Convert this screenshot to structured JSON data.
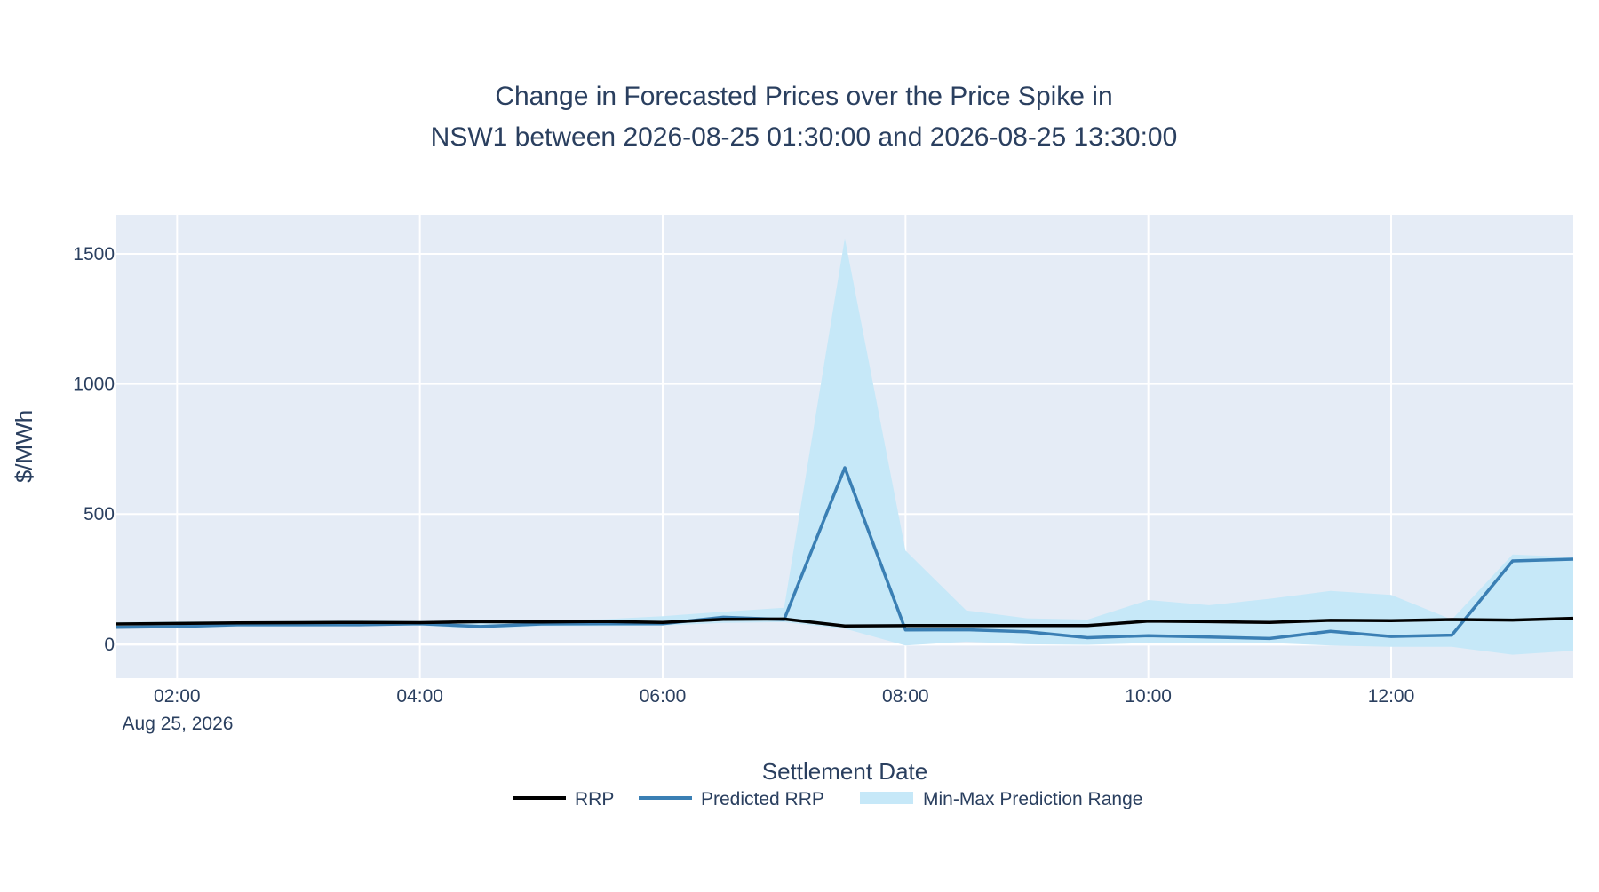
{
  "chart_data": {
    "type": "line",
    "title_line1": "Change in Forecasted Prices over the Price Spike in",
    "title_line2": "NSW1 between 2026-08-25 01:30:00 and 2026-08-25 13:30:00",
    "xlabel": "Settlement Date",
    "ylabel": "$/MWh",
    "x_date_label": "Aug 25, 2026",
    "x": [
      "01:30",
      "02:00",
      "02:30",
      "03:00",
      "03:30",
      "04:00",
      "04:30",
      "05:00",
      "05:30",
      "06:00",
      "06:30",
      "07:00",
      "07:30",
      "08:00",
      "08:30",
      "09:00",
      "09:30",
      "10:00",
      "10:30",
      "11:00",
      "11:30",
      "12:00",
      "12:30",
      "13:00",
      "13:30"
    ],
    "x_ticks": [
      "02:00",
      "04:00",
      "06:00",
      "08:00",
      "10:00",
      "12:00"
    ],
    "ylim": [
      -130,
      1650
    ],
    "y_ticks": [
      0,
      500,
      1000,
      1500
    ],
    "grid": true,
    "legend_placement": "bottom-center",
    "colors": {
      "plot_background": "#e5ecf6",
      "grid": "#ffffff",
      "rrp": "#000000",
      "predicted_rrp": "#3a7fb4",
      "range_fill": "#c6e8f8"
    },
    "series": [
      {
        "name": "RRP",
        "values": [
          78,
          80,
          82,
          83,
          84,
          83,
          87,
          86,
          88,
          84,
          96,
          97,
          70,
          72,
          72,
          72,
          72,
          89,
          87,
          84,
          92,
          91,
          95,
          93,
          100
        ]
      },
      {
        "name": "Predicted RRP",
        "values": [
          65,
          68,
          75,
          75,
          75,
          79,
          68,
          78,
          79,
          79,
          104,
          95,
          678,
          55,
          56,
          48,
          25,
          33,
          28,
          22,
          50,
          30,
          35,
          320,
          327
        ]
      },
      {
        "name": "Min-Max Prediction Range",
        "min": [
          60,
          62,
          68,
          68,
          70,
          72,
          60,
          70,
          70,
          72,
          82,
          85,
          60,
          -5,
          10,
          0,
          -2,
          5,
          5,
          5,
          -5,
          -10,
          -10,
          -40,
          -25
        ],
        "max": [
          85,
          88,
          88,
          90,
          92,
          90,
          92,
          93,
          96,
          108,
          125,
          140,
          1560,
          360,
          130,
          100,
          95,
          170,
          150,
          175,
          205,
          190,
          95,
          345,
          335
        ]
      }
    ]
  }
}
